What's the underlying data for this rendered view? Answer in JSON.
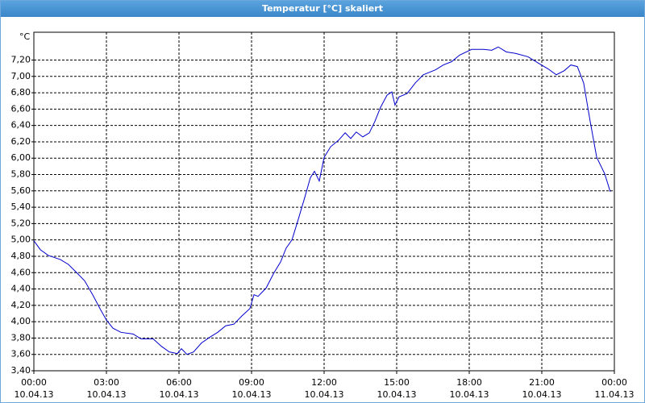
{
  "chart_data": {
    "type": "line",
    "title": "Temperatur [°C] skaliert",
    "y_unit": "°C",
    "x": [
      0,
      0.27,
      0.6,
      1.1,
      1.43,
      1.77,
      2.1,
      2.43,
      2.77,
      3.0,
      3.27,
      3.6,
      4.1,
      4.43,
      4.93,
      5.27,
      5.6,
      5.93,
      6.1,
      6.33,
      6.6,
      6.93,
      7.27,
      7.6,
      7.93,
      8.27,
      8.6,
      8.93,
      9.1,
      9.27,
      9.6,
      9.93,
      10.2,
      10.43,
      10.67,
      10.93,
      11.2,
      11.43,
      11.6,
      11.8,
      12.0,
      12.27,
      12.6,
      12.87,
      13.1,
      13.33,
      13.6,
      13.87,
      14.1,
      14.33,
      14.6,
      14.8,
      14.93,
      15.1,
      15.43,
      15.77,
      16.1,
      16.6,
      16.93,
      17.27,
      17.6,
      18.1,
      18.6,
      18.93,
      19.2,
      19.53,
      19.93,
      20.43,
      20.87,
      21.27,
      21.6,
      21.93,
      22.2,
      22.47,
      22.73,
      23.0,
      23.27,
      23.6,
      23.83
    ],
    "series": [
      {
        "name": "Temperatur",
        "color": "#0000cc",
        "values": [
          4.99,
          4.88,
          4.81,
          4.76,
          4.7,
          4.6,
          4.5,
          4.33,
          4.14,
          4.02,
          3.92,
          3.87,
          3.85,
          3.79,
          3.79,
          3.7,
          3.63,
          3.61,
          3.67,
          3.6,
          3.63,
          3.74,
          3.81,
          3.87,
          3.95,
          3.97,
          4.07,
          4.16,
          4.33,
          4.31,
          4.41,
          4.6,
          4.73,
          4.9,
          5.0,
          5.25,
          5.52,
          5.76,
          5.84,
          5.72,
          6.01,
          6.14,
          6.22,
          6.31,
          6.24,
          6.32,
          6.26,
          6.31,
          6.45,
          6.62,
          6.77,
          6.81,
          6.65,
          6.75,
          6.79,
          6.92,
          7.02,
          7.08,
          7.14,
          7.18,
          7.26,
          7.33,
          7.33,
          7.32,
          7.36,
          7.3,
          7.28,
          7.24,
          7.16,
          7.09,
          7.02,
          7.07,
          7.14,
          7.12,
          6.92,
          6.45,
          6.01,
          5.81,
          5.59
        ]
      }
    ],
    "xlim": [
      0,
      24
    ],
    "xticks": [
      {
        "value": 0,
        "label": "00:00",
        "date": "10.04.13"
      },
      {
        "value": 3,
        "label": "03:00",
        "date": "10.04.13"
      },
      {
        "value": 6,
        "label": "06:00",
        "date": "10.04.13"
      },
      {
        "value": 9,
        "label": "09:00",
        "date": "10.04.13"
      },
      {
        "value": 12,
        "label": "12:00",
        "date": "10.04.13"
      },
      {
        "value": 15,
        "label": "15:00",
        "date": "10.04.13"
      },
      {
        "value": 18,
        "label": "18:00",
        "date": "10.04.13"
      },
      {
        "value": 21,
        "label": "21:00",
        "date": "10.04.13"
      },
      {
        "value": 24,
        "label": "00:00",
        "date": "11.04.13"
      }
    ],
    "ylim": [
      3.4,
      7.54
    ],
    "yticks": [
      {
        "value": 3.4,
        "label": "3,40"
      },
      {
        "value": 3.6,
        "label": "3,60"
      },
      {
        "value": 3.8,
        "label": "3,80"
      },
      {
        "value": 4.0,
        "label": "4,00"
      },
      {
        "value": 4.2,
        "label": "4,20"
      },
      {
        "value": 4.4,
        "label": "4,40"
      },
      {
        "value": 4.6,
        "label": "4,60"
      },
      {
        "value": 4.8,
        "label": "4,80"
      },
      {
        "value": 5.0,
        "label": "5,00"
      },
      {
        "value": 5.2,
        "label": "5,20"
      },
      {
        "value": 5.4,
        "label": "5,40"
      },
      {
        "value": 5.6,
        "label": "5,60"
      },
      {
        "value": 5.8,
        "label": "5,80"
      },
      {
        "value": 6.0,
        "label": "6,00"
      },
      {
        "value": 6.2,
        "label": "6,20"
      },
      {
        "value": 6.4,
        "label": "6,40"
      },
      {
        "value": 6.6,
        "label": "6,60"
      },
      {
        "value": 6.8,
        "label": "6,80"
      },
      {
        "value": 7.0,
        "label": "7,00"
      },
      {
        "value": 7.2,
        "label": "7,20"
      }
    ],
    "grid": true
  }
}
